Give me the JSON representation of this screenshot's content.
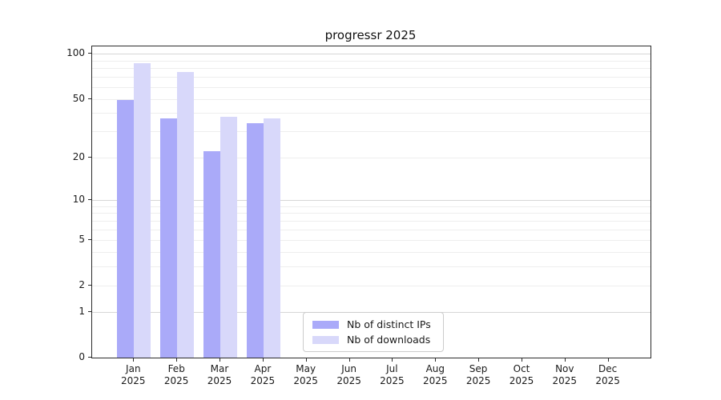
{
  "chart_data": {
    "type": "bar",
    "title": "progressr 2025",
    "categories": [
      "Jan",
      "Feb",
      "Mar",
      "Apr",
      "May",
      "Jun",
      "Jul",
      "Aug",
      "Sep",
      "Oct",
      "Nov",
      "Dec"
    ],
    "category_year": "2025",
    "series": [
      {
        "name": "Nb of distinct IPs",
        "color": "#aaaaf9",
        "values": [
          49,
          37,
          22,
          34,
          null,
          null,
          null,
          null,
          null,
          null,
          null,
          null
        ]
      },
      {
        "name": "Nb of downloads",
        "color": "#d8d8fa",
        "values": [
          87,
          76,
          38,
          37,
          null,
          null,
          null,
          null,
          null,
          null,
          null,
          null
        ]
      }
    ],
    "y_scale": "log1p",
    "y_ticks": [
      0,
      1,
      2,
      5,
      10,
      20,
      50,
      100
    ],
    "y_minor_gridlines": [
      2,
      3,
      4,
      5,
      6,
      7,
      8,
      9,
      20,
      30,
      40,
      50,
      60,
      70,
      80,
      90
    ],
    "y_major_gridlines": [
      1,
      10,
      100
    ],
    "ylim": [
      0,
      112
    ],
    "grid": true,
    "legend_position": "lower center inside plot"
  },
  "colors": {
    "background": "#ffffff",
    "bar_ips": "#aaaaf9",
    "bar_downloads": "#d8d8fa",
    "grid_major": "#d6d6d6",
    "grid_minor": "#eeeeee",
    "axis": "#2b2b2b",
    "text": "#1a1a1a",
    "legend_border": "#cccccc"
  }
}
